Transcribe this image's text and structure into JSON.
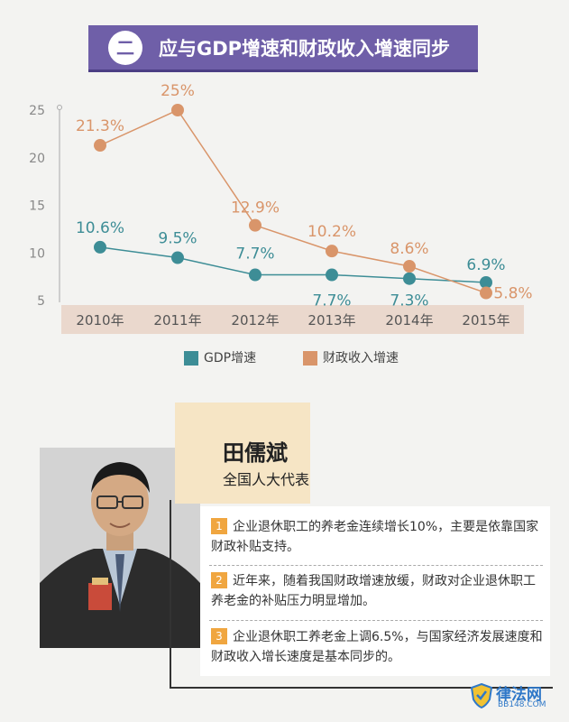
{
  "header": {
    "badge": "二",
    "title": "应与GDP增速和财政收入增速同步"
  },
  "chart_data": {
    "type": "line",
    "categories": [
      "2010年",
      "2011年",
      "2012年",
      "2013年",
      "2014年",
      "2015年"
    ],
    "yticks": [
      5,
      10,
      15,
      20,
      25
    ],
    "ylim": [
      5,
      25
    ],
    "series": [
      {
        "name": "GDP增速",
        "color": "#3d8d96",
        "values": [
          10.6,
          9.5,
          7.7,
          7.7,
          7.3,
          6.9
        ],
        "labels": [
          "10.6%",
          "9.5%",
          "7.7%",
          "7.7%",
          "7.3%",
          "6.9%"
        ]
      },
      {
        "name": "财政收入增速",
        "color": "#d9956a",
        "values": [
          21.3,
          25,
          12.9,
          10.2,
          8.6,
          5.8
        ],
        "labels": [
          "21.3%",
          "25%",
          "12.9%",
          "10.2%",
          "8.6%",
          "5.8%"
        ]
      }
    ],
    "legend_position": "bottom"
  },
  "profile": {
    "name": "田儒斌",
    "title": "全国人大代表",
    "quotes": [
      {
        "num": "1",
        "text": "企业退休职工的养老金连续增长10%，主要是依靠国家财政补贴支持。"
      },
      {
        "num": "2",
        "text": "近年来，随着我国财政增速放缓，财政对企业退休职工养老金的补贴压力明显增加。"
      },
      {
        "num": "3",
        "text": "企业退休职工养老金上调6.5%，与国家经济发展速度和财政收入增长速度是基本同步的。"
      }
    ]
  },
  "watermark": {
    "logo_text": "律法网",
    "logo_sub": "BB148.COM"
  }
}
